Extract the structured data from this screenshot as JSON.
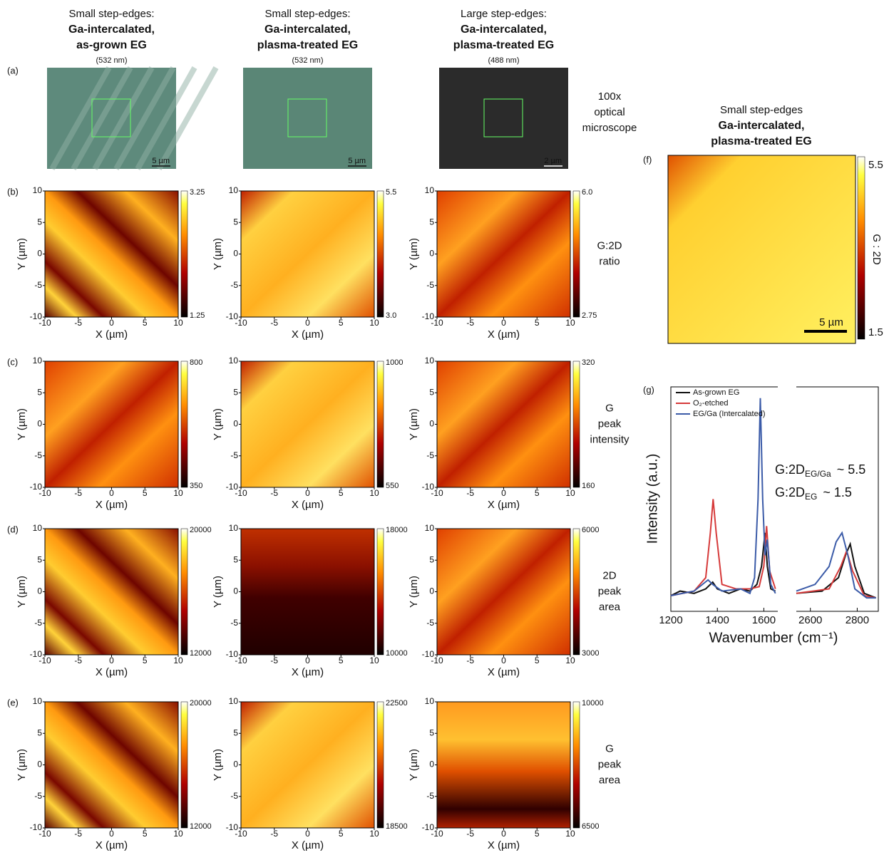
{
  "columns": [
    {
      "line1": "Small step-edges:",
      "line2": "Ga-intercalated,",
      "line3": "as-grown EG",
      "wavelength": "(532 nm)",
      "scalebar": "5 µm"
    },
    {
      "line1": "Small step-edges:",
      "line2": "Ga-intercalated,",
      "line3": "plasma-treated EG",
      "wavelength": "(532 nm)",
      "scalebar": "5 µm"
    },
    {
      "line1": "Large step-edges:",
      "line2": "Ga-intercalated,",
      "line3": "plasma-treated EG",
      "wavelength": "(488 nm)",
      "scalebar": "2 µm"
    }
  ],
  "panel_a": {
    "label": "(a)",
    "caption": [
      "100x",
      "optical",
      "microscope"
    ]
  },
  "map_axis": {
    "xlabel": "X (µm)",
    "ylabel": "Y (µm)",
    "ticks": [
      -10,
      -5,
      0,
      5,
      10
    ]
  },
  "rows": [
    {
      "label": "(b)",
      "name": [
        "G:2D",
        "ratio"
      ],
      "colorbars": [
        [
          3.25,
          1.25
        ],
        [
          5.5,
          {
            "value": 3,
            "label": "3.0"
          }
        ],
        [
          {
            "value": 6,
            "label": "6.0"
          },
          2.75
        ]
      ]
    },
    {
      "label": "(c)",
      "name": [
        "G",
        "peak",
        "intensity"
      ],
      "colorbars": [
        [
          800,
          350
        ],
        [
          1000,
          550
        ],
        [
          320,
          160
        ]
      ]
    },
    {
      "label": "(d)",
      "name": [
        "2D",
        "peak",
        "area"
      ],
      "colorbars": [
        [
          20000,
          12000
        ],
        [
          18000,
          10000
        ],
        [
          6000,
          3000
        ]
      ]
    },
    {
      "label": "(e)",
      "name": [
        "G",
        "peak",
        "area"
      ],
      "colorbars": [
        [
          20000,
          12000
        ],
        [
          22500,
          18500
        ],
        [
          10000,
          6500
        ]
      ]
    }
  ],
  "panel_f": {
    "label": "(f)",
    "title": [
      "Small step-edges",
      "Ga-intercalated,",
      "plasma-treated EG"
    ],
    "colorbar": [
      5.5,
      1.5
    ],
    "colorbar_label": "G : 2D",
    "scalebar": "5 µm"
  },
  "chart_data": {
    "type": "line",
    "label": "(g)",
    "x_label": "Wavenumber (cm⁻¹)",
    "y_label": "Intensity (a.u.)",
    "xlim": [
      1200,
      2890
    ],
    "x_break": [
      1660,
      2540
    ],
    "xticks": [
      1200,
      1400,
      1600,
      2600,
      2800
    ],
    "ylim": [
      0,
      1
    ],
    "series": [
      {
        "name": "As-grown EG",
        "color": "#111111",
        "x": [
          1200,
          1240,
          1300,
          1350,
          1380,
          1400,
          1450,
          1500,
          1540,
          1570,
          1590,
          1605,
          1615,
          1630,
          1650,
          null,
          2540,
          2650,
          2720,
          2750,
          2770,
          2790,
          2830,
          2880
        ],
        "values": [
          0.07,
          0.09,
          0.08,
          0.1,
          0.13,
          0.1,
          0.08,
          0.1,
          0.09,
          0.12,
          0.2,
          0.35,
          0.2,
          0.1,
          0.09,
          null,
          0.08,
          0.09,
          0.15,
          0.25,
          0.3,
          0.2,
          0.08,
          0.06
        ]
      },
      {
        "name": "O₂-etched",
        "color": "#d63a3a",
        "x": [
          1200,
          1300,
          1350,
          1370,
          1382,
          1395,
          1420,
          1480,
          1540,
          1580,
          1600,
          1612,
          1625,
          1650,
          null,
          2540,
          2680,
          2730,
          2755,
          2780,
          2830,
          2880
        ],
        "values": [
          0.07,
          0.09,
          0.15,
          0.35,
          0.5,
          0.35,
          0.12,
          0.1,
          0.1,
          0.11,
          0.2,
          0.38,
          0.18,
          0.1,
          null,
          0.08,
          0.1,
          0.2,
          0.27,
          0.18,
          0.07,
          0.06
        ]
      },
      {
        "name": "EG/Ga (Intercalated)",
        "color": "#3b5ba8",
        "x": [
          1200,
          1300,
          1360,
          1380,
          1420,
          1500,
          1540,
          1560,
          1575,
          1585,
          1595,
          1605,
          1615,
          1630,
          1650,
          null,
          2540,
          2620,
          2680,
          2710,
          2735,
          2760,
          2790,
          2840,
          2880
        ],
        "values": [
          0.07,
          0.09,
          0.14,
          0.12,
          0.09,
          0.1,
          0.08,
          0.15,
          0.5,
          0.95,
          0.5,
          0.25,
          0.32,
          0.12,
          0.08,
          null,
          0.09,
          0.12,
          0.2,
          0.31,
          0.35,
          0.25,
          0.1,
          0.06,
          0.06
        ]
      }
    ],
    "annotations": [
      {
        "text": "G:2D",
        "sub": "EG/Ga",
        "value": "~ 5.5",
        "color": "#3b5ba8"
      },
      {
        "text": "G:2D",
        "sub": "EG",
        "value": "~ 1.5",
        "color": "#111111"
      }
    ]
  }
}
